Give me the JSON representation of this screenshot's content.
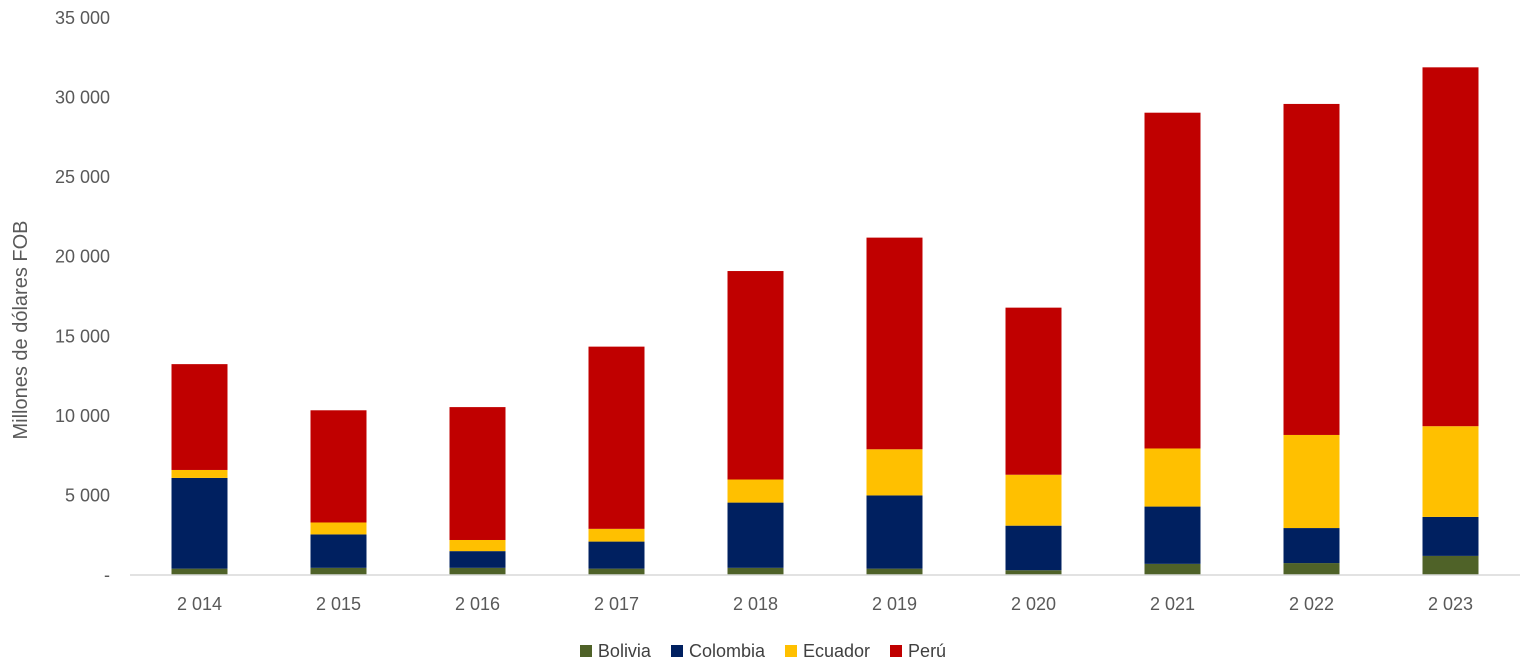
{
  "chart_data": {
    "type": "bar",
    "stacked": true,
    "categories": [
      "2 014",
      "2 015",
      "2 016",
      "2 017",
      "2 018",
      "2 019",
      "2 020",
      "2 021",
      "2 022",
      "2 023"
    ],
    "ylabel": "Millones de dólares FOB",
    "xlabel": "",
    "ylim": [
      0,
      35000
    ],
    "yticks": [
      0,
      5000,
      10000,
      15000,
      20000,
      25000,
      30000,
      35000
    ],
    "ytick_labels": [
      "-",
      "5 000",
      "10 000",
      "15 000",
      "20 000",
      "25 000",
      "30 000",
      "35 000"
    ],
    "grid": false,
    "legend_position": "bottom-center",
    "series": [
      {
        "name": "Bolivia",
        "color": "#4F6228",
        "values": [
          400,
          450,
          450,
          400,
          450,
          400,
          300,
          700,
          750,
          1200
        ]
      },
      {
        "name": "Colombia",
        "color": "#002060",
        "values": [
          5700,
          2100,
          1050,
          1700,
          4100,
          4600,
          2800,
          3600,
          2200,
          2450
        ]
      },
      {
        "name": "Ecuador",
        "color": "#FFC000",
        "values": [
          500,
          750,
          700,
          800,
          1450,
          2900,
          3200,
          3650,
          5850,
          5700
        ]
      },
      {
        "name": "Perú",
        "color": "#C00000",
        "values": [
          6650,
          7050,
          8350,
          11450,
          13100,
          13300,
          10500,
          21100,
          20800,
          22550
        ]
      }
    ]
  }
}
